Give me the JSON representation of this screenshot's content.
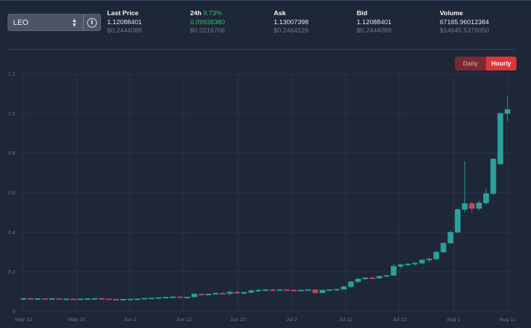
{
  "selector": {
    "value": "LEO",
    "updown_icon": "updown-chevron-icon",
    "info_icon": "info-icon"
  },
  "stats": [
    {
      "label": "Last Price",
      "value": "1.12088401",
      "sub": "$0.2444088"
    },
    {
      "label": "24h",
      "change": "9.73%",
      "value": "0.09938380",
      "sub": "$0.0216706"
    },
    {
      "label": "Ask",
      "value": "1.13007398",
      "sub": "$0.2464126"
    },
    {
      "label": "Bid",
      "value": "1.12088401",
      "sub": "$0.2444088"
    },
    {
      "label": "Volume",
      "value": "67165.96012384",
      "sub": "$14645.5376050"
    }
  ],
  "toggle": {
    "daily": "Daily",
    "hourly": "Hourly",
    "active": "hourly"
  },
  "colors": {
    "up": "#2aa19b",
    "down": "#c2455a",
    "accent": "#e0343b",
    "positive": "#33c26a"
  },
  "chart_data": {
    "type": "candlestick",
    "ylim": [
      0,
      1.2
    ],
    "y_ticks": [
      "0",
      "0.2",
      "0.4",
      "0.6",
      "0.8",
      "1.0",
      "1.2"
    ],
    "x_ticks": [
      "May 13",
      "May 23",
      "Jun 2",
      "Jun 12",
      "Jun 22",
      "Jul 2",
      "Jul 12",
      "Jul 22",
      "Aug 1",
      "Aug 11"
    ],
    "candles": [
      [
        0.065,
        0.066,
        0.063,
        0.066
      ],
      [
        0.066,
        0.067,
        0.064,
        0.064
      ],
      [
        0.064,
        0.066,
        0.063,
        0.065
      ],
      [
        0.065,
        0.066,
        0.063,
        0.064
      ],
      [
        0.064,
        0.066,
        0.063,
        0.065
      ],
      [
        0.065,
        0.066,
        0.062,
        0.063
      ],
      [
        0.063,
        0.065,
        0.062,
        0.064
      ],
      [
        0.064,
        0.066,
        0.062,
        0.063
      ],
      [
        0.063,
        0.065,
        0.062,
        0.064
      ],
      [
        0.064,
        0.066,
        0.063,
        0.065
      ],
      [
        0.065,
        0.067,
        0.064,
        0.066
      ],
      [
        0.066,
        0.067,
        0.063,
        0.064
      ],
      [
        0.064,
        0.065,
        0.061,
        0.062
      ],
      [
        0.062,
        0.064,
        0.06,
        0.061
      ],
      [
        0.061,
        0.063,
        0.059,
        0.062
      ],
      [
        0.062,
        0.064,
        0.06,
        0.063
      ],
      [
        0.063,
        0.065,
        0.061,
        0.064
      ],
      [
        0.064,
        0.068,
        0.063,
        0.067
      ],
      [
        0.067,
        0.07,
        0.065,
        0.068
      ],
      [
        0.068,
        0.072,
        0.066,
        0.07
      ],
      [
        0.07,
        0.074,
        0.068,
        0.072
      ],
      [
        0.072,
        0.076,
        0.07,
        0.074
      ],
      [
        0.074,
        0.076,
        0.07,
        0.071
      ],
      [
        0.071,
        0.074,
        0.069,
        0.073
      ],
      [
        0.073,
        0.092,
        0.071,
        0.088
      ],
      [
        0.088,
        0.092,
        0.082,
        0.084
      ],
      [
        0.084,
        0.09,
        0.082,
        0.088
      ],
      [
        0.088,
        0.096,
        0.086,
        0.092
      ],
      [
        0.092,
        0.098,
        0.086,
        0.09
      ],
      [
        0.09,
        0.104,
        0.08,
        0.098
      ],
      [
        0.098,
        0.103,
        0.088,
        0.092
      ],
      [
        0.092,
        0.1,
        0.088,
        0.096
      ],
      [
        0.096,
        0.11,
        0.092,
        0.105
      ],
      [
        0.105,
        0.115,
        0.098,
        0.108
      ],
      [
        0.108,
        0.113,
        0.103,
        0.11
      ],
      [
        0.11,
        0.113,
        0.105,
        0.109
      ],
      [
        0.109,
        0.112,
        0.105,
        0.11
      ],
      [
        0.11,
        0.112,
        0.106,
        0.108
      ],
      [
        0.108,
        0.111,
        0.104,
        0.106
      ],
      [
        0.106,
        0.11,
        0.104,
        0.108
      ],
      [
        0.108,
        0.112,
        0.106,
        0.11
      ],
      [
        0.11,
        0.112,
        0.09,
        0.094
      ],
      [
        0.094,
        0.11,
        0.092,
        0.108
      ],
      [
        0.108,
        0.112,
        0.104,
        0.11
      ],
      [
        0.11,
        0.114,
        0.106,
        0.112
      ],
      [
        0.112,
        0.13,
        0.108,
        0.125
      ],
      [
        0.125,
        0.155,
        0.12,
        0.15
      ],
      [
        0.15,
        0.168,
        0.142,
        0.164
      ],
      [
        0.164,
        0.172,
        0.16,
        0.17
      ],
      [
        0.17,
        0.175,
        0.165,
        0.168
      ],
      [
        0.168,
        0.18,
        0.165,
        0.178
      ],
      [
        0.178,
        0.185,
        0.172,
        0.182
      ],
      [
        0.182,
        0.24,
        0.18,
        0.228
      ],
      [
        0.228,
        0.24,
        0.22,
        0.236
      ],
      [
        0.236,
        0.245,
        0.228,
        0.24
      ],
      [
        0.24,
        0.25,
        0.232,
        0.244
      ],
      [
        0.244,
        0.265,
        0.238,
        0.26
      ],
      [
        0.26,
        0.272,
        0.248,
        0.265
      ],
      [
        0.265,
        0.305,
        0.26,
        0.3
      ],
      [
        0.3,
        0.35,
        0.295,
        0.345
      ],
      [
        0.345,
        0.41,
        0.34,
        0.4
      ],
      [
        0.4,
        0.52,
        0.395,
        0.515
      ],
      [
        0.515,
        0.76,
        0.5,
        0.545
      ],
      [
        0.545,
        0.555,
        0.5,
        0.52
      ],
      [
        0.52,
        0.56,
        0.51,
        0.548
      ],
      [
        0.548,
        0.62,
        0.54,
        0.595
      ],
      [
        0.595,
        0.775,
        0.59,
        0.77
      ],
      [
        0.745,
        1.005,
        0.74,
        1.0
      ],
      [
        1.0,
        1.085,
        0.96,
        1.02
      ]
    ]
  }
}
